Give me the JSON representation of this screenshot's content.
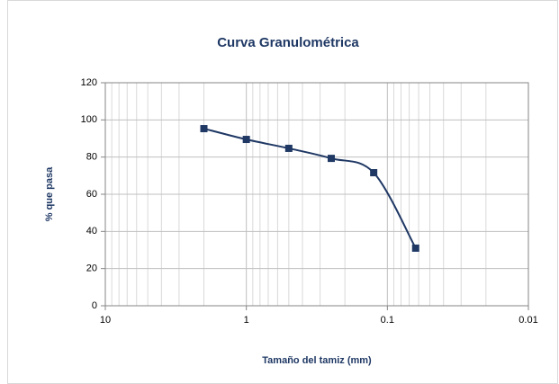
{
  "chart_data": {
    "type": "line",
    "title": "Curva Granulométrica",
    "x_label": "Tamaño del tamiz (mm)",
    "y_label": "% que pasa",
    "x": [
      2,
      1,
      0.5,
      0.25,
      0.125,
      0.063
    ],
    "series": [
      {
        "name": "% que pasa",
        "color": "#1f3864",
        "values": [
          95.3,
          89.5,
          84.7,
          79.3,
          71.6,
          31
        ]
      }
    ],
    "xlim": [
      10,
      0.01
    ],
    "xticks": [
      10,
      1,
      0.1,
      0.01
    ],
    "x_log": true,
    "x_minor_grid": true,
    "ylim": [
      0,
      120
    ],
    "yticks": [
      0,
      20,
      40,
      60,
      80,
      100,
      120
    ],
    "grid": true,
    "smooth": true,
    "marker": "square"
  }
}
